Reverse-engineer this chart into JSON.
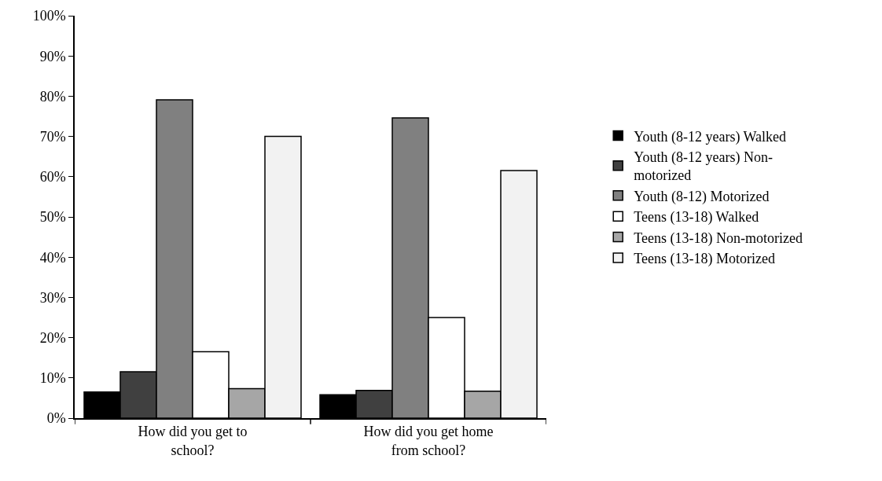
{
  "chart_data": {
    "type": "bar",
    "categories": [
      "How did you get to school?",
      "How did you get home from school?"
    ],
    "series": [
      {
        "name": "Youth (8-12 years) Walked",
        "color": "#000000",
        "values": [
          6.5,
          5.8
        ]
      },
      {
        "name": "Youth (8-12 years) Non-motorized",
        "color": "#404040",
        "values": [
          11.5,
          6.9
        ]
      },
      {
        "name": "Youth (8-12) Motorized",
        "color": "#808080",
        "values": [
          79.1,
          74.6
        ]
      },
      {
        "name": "Teens (13-18) Walked",
        "color": "#ffffff",
        "values": [
          16.5,
          25.0
        ]
      },
      {
        "name": "Teens (13-18) Non-motorized",
        "color": "#a6a6a6",
        "values": [
          7.3,
          6.7
        ]
      },
      {
        "name": "Teens (13-18) Motorized",
        "color": "#f2f2f2",
        "values": [
          70.0,
          61.5
        ]
      }
    ],
    "ylim": [
      0,
      100
    ],
    "yticks": [
      {
        "value": 0,
        "label": "0%"
      },
      {
        "value": 10,
        "label": "10%"
      },
      {
        "value": 20,
        "label": "20%"
      },
      {
        "value": 30,
        "label": "30%"
      },
      {
        "value": 40,
        "label": "40%"
      },
      {
        "value": 50,
        "label": "50%"
      },
      {
        "value": 60,
        "label": "60%"
      },
      {
        "value": 70,
        "label": "70%"
      },
      {
        "value": 80,
        "label": "80%"
      },
      {
        "value": 90,
        "label": "90%"
      },
      {
        "value": 100,
        "label": "100%"
      }
    ],
    "grid": false,
    "legend": "right"
  }
}
